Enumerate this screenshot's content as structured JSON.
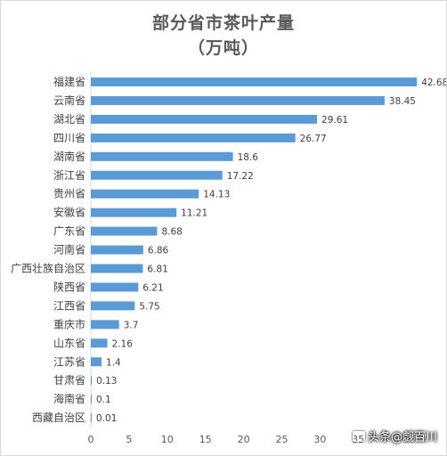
{
  "chart_data": {
    "type": "bar",
    "orientation": "horizontal",
    "title": "部分省市茶叶产量",
    "subtitle": "（万吨）",
    "categories": [
      "福建省",
      "云南省",
      "湖北省",
      "四川省",
      "湖南省",
      "浙江省",
      "贵州省",
      "安徽省",
      "广东省",
      "河南省",
      "广西壮族自治区",
      "陕西省",
      "江西省",
      "重庆市",
      "山东省",
      "江苏省",
      "甘肃省",
      "海南省",
      "西藏自治区"
    ],
    "values": [
      42.68,
      38.45,
      29.61,
      26.77,
      18.6,
      17.22,
      14.13,
      11.21,
      8.68,
      6.86,
      6.81,
      6.21,
      5.75,
      3.7,
      2.16,
      1.4,
      0.13,
      0.1,
      0.01
    ],
    "value_labels": [
      "42.68",
      "38.45",
      "29.61",
      "26.77",
      "18.6",
      "17.22",
      "14.13",
      "11.21",
      "8.68",
      "6.86",
      "6.81",
      "6.21",
      "5.75",
      "3.7",
      "2.16",
      "1.4",
      "0.13",
      "0.1",
      "0.01"
    ],
    "xticks": [
      "0",
      "5",
      "10",
      "15",
      "20",
      "25",
      "30",
      "35"
    ],
    "xlim": [
      0,
      45
    ],
    "grid": false,
    "legend": "none",
    "bar_color": "#5b9bd5"
  },
  "watermark": "头条@觑百川"
}
